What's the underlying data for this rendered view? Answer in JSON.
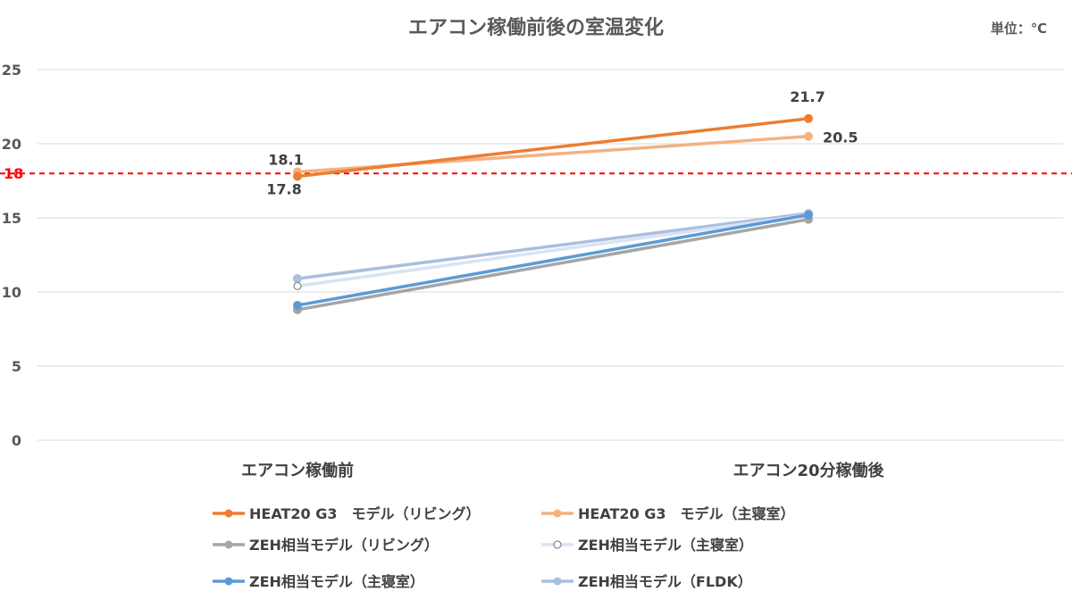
{
  "chart_data": {
    "type": "line",
    "title": "エアコン稼働前後の室温変化",
    "unit_note": "単位：℃",
    "categories": [
      "エアコン稼働前",
      "エアコン20分稼働後"
    ],
    "ylim": [
      0,
      25
    ],
    "yticks": [
      0,
      5,
      10,
      15,
      20,
      25
    ],
    "grid": true,
    "legend_position": "bottom",
    "reference_line": {
      "value": 18,
      "label": "18",
      "color": "#ff0000",
      "style": "dashed"
    },
    "series": [
      {
        "name": "HEAT20 G3　モデル（リビング）",
        "values": [
          17.8,
          21.7
        ],
        "color": "#ed7d31",
        "marker": "filled",
        "labels": [
          "17.8",
          "21.7"
        ]
      },
      {
        "name": "HEAT20 G3　モデル（主寝室）",
        "values": [
          18.1,
          20.5
        ],
        "color": "#f4b183",
        "marker": "filled",
        "labels": [
          "18.1",
          "20.5"
        ]
      },
      {
        "name": "ZEH相当モデル（リビング）",
        "values": [
          8.8,
          14.9
        ],
        "color": "#a5a5a5",
        "marker": "filled"
      },
      {
        "name": "ZEH相当モデル（主寝室）",
        "values": [
          10.4,
          15.2
        ],
        "color": "#dae3f3",
        "marker": "hollow"
      },
      {
        "name": "ZEH相当モデル（主寝室）",
        "values": [
          9.1,
          15.2
        ],
        "color": "#5b9bd5",
        "marker": "filled"
      },
      {
        "name": "ZEH相当モデル（FLDK）",
        "values": [
          10.9,
          15.3
        ],
        "color": "#a9bfe0",
        "marker": "filled"
      }
    ]
  }
}
